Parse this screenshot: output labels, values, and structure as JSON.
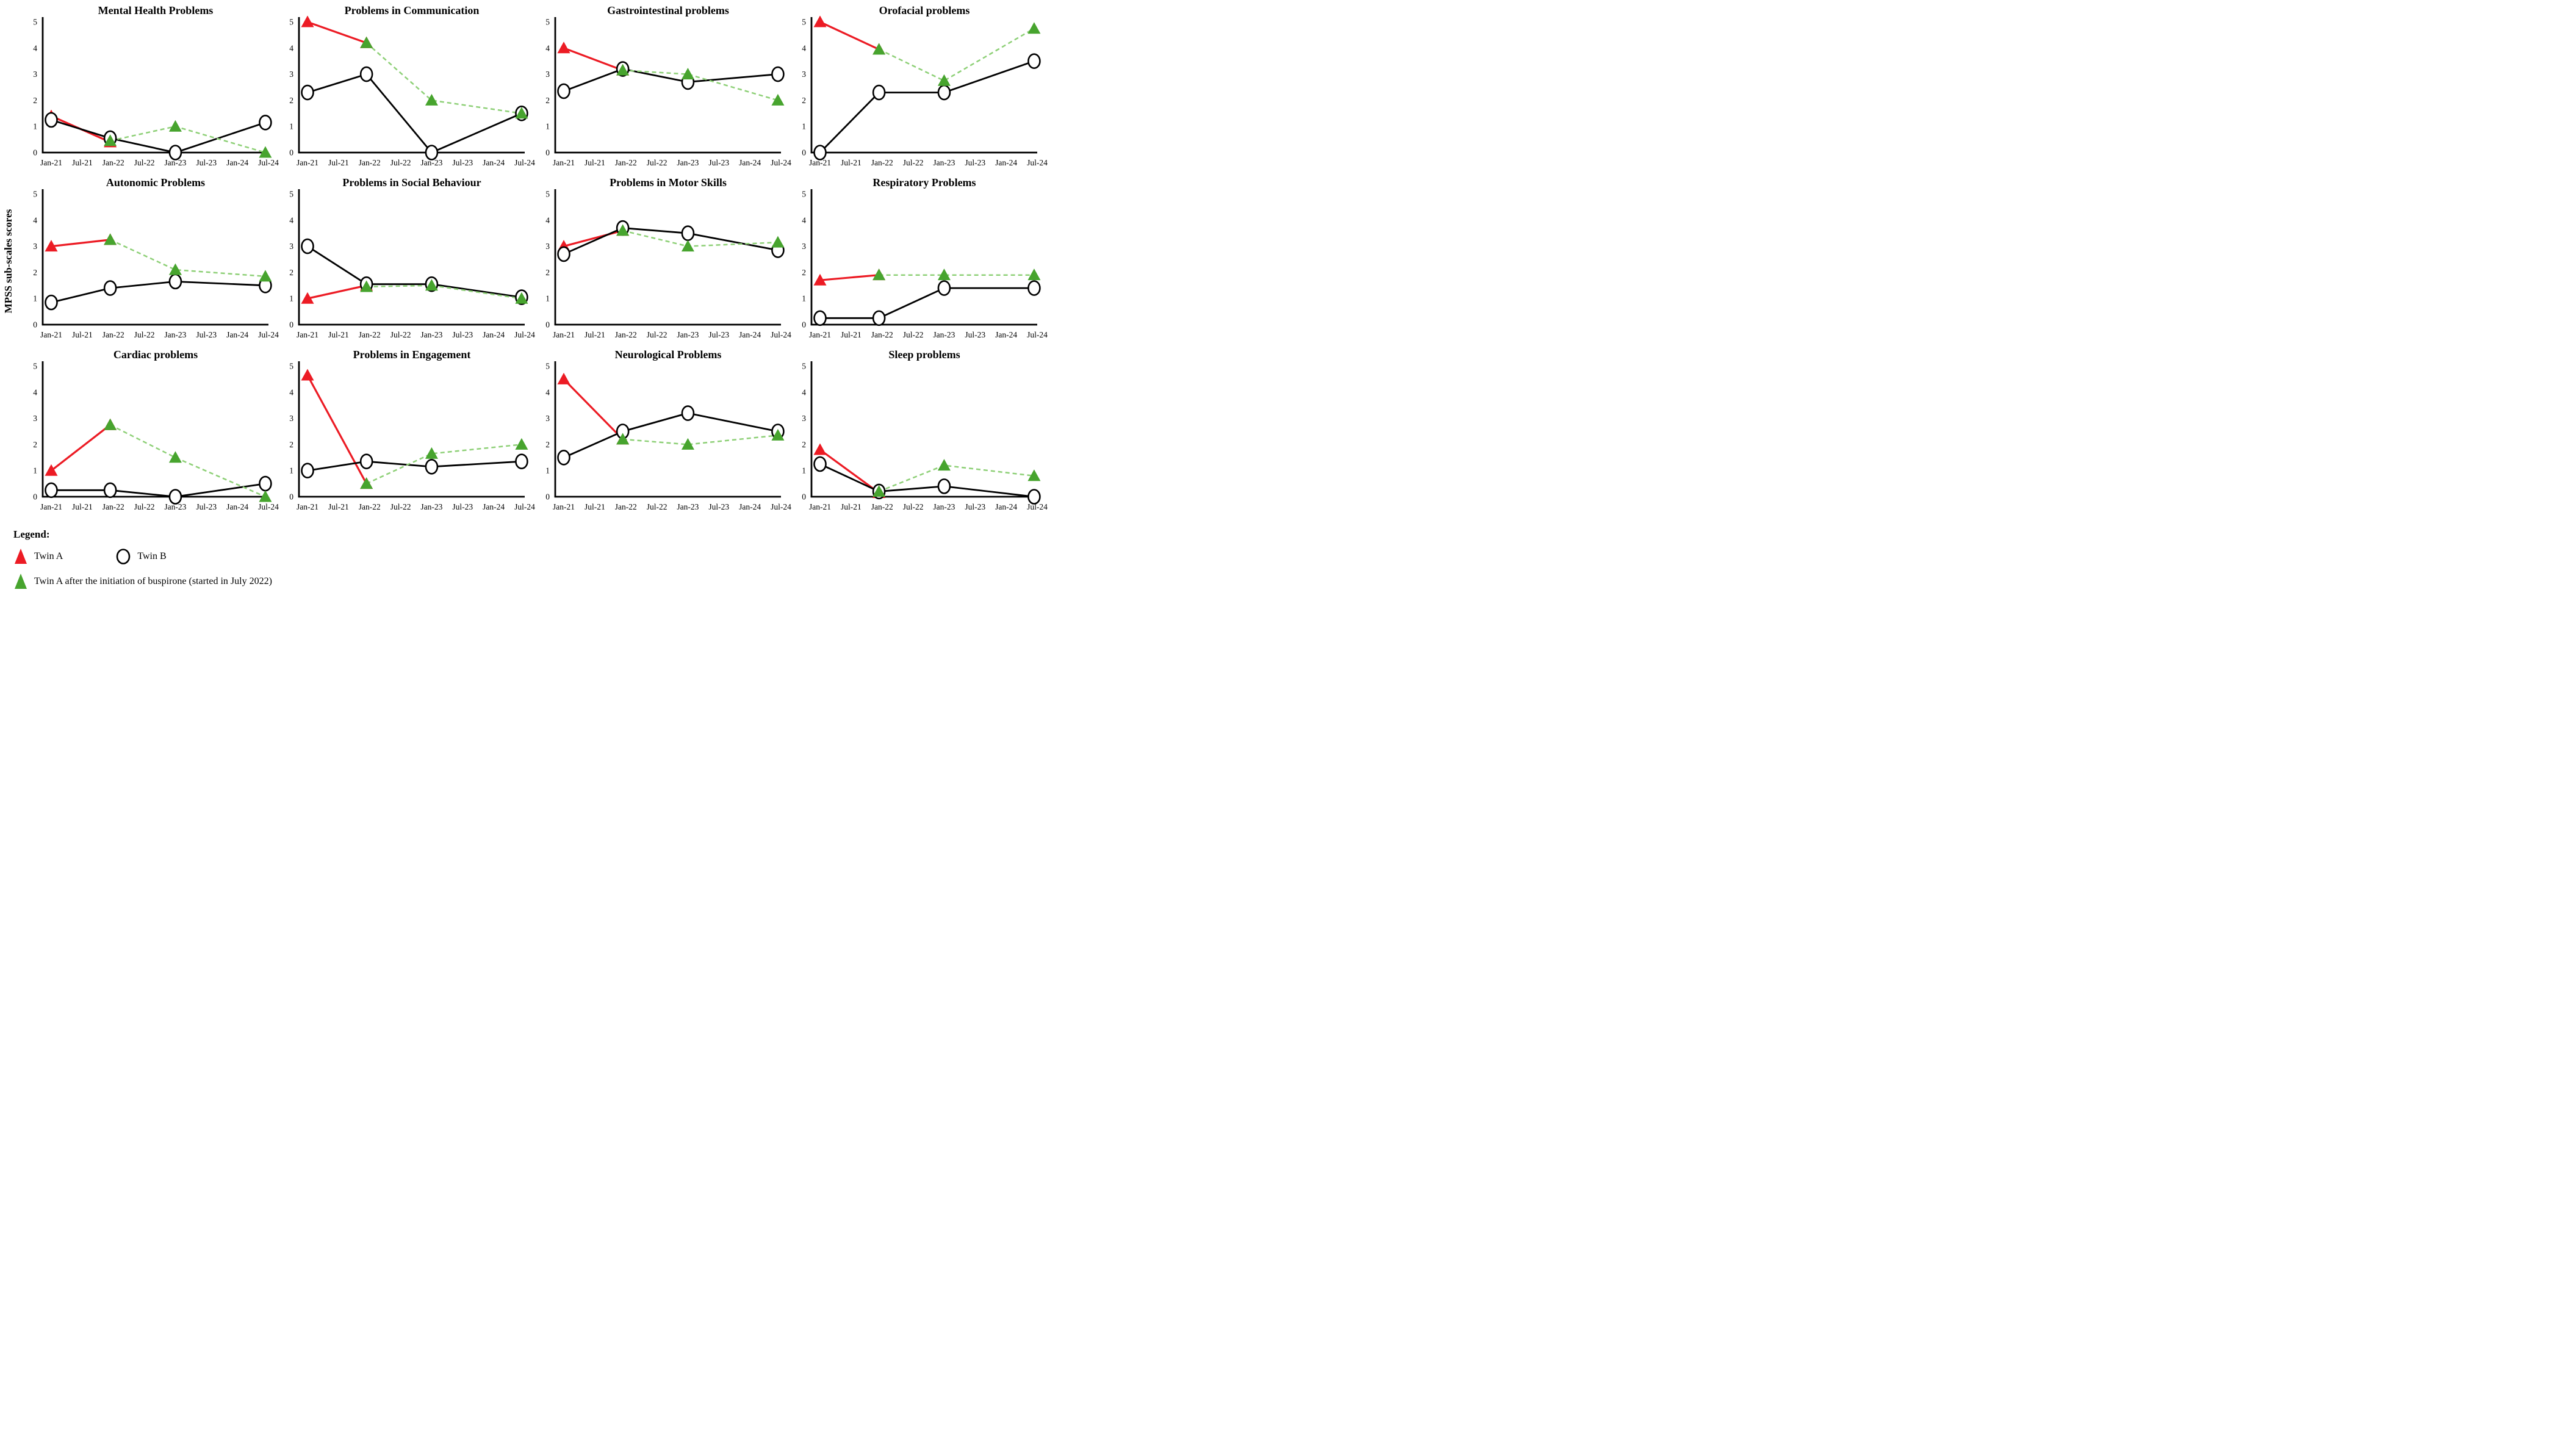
{
  "figure": {
    "ylabel": "MPSS sub-scales scores",
    "x_tick_labels": [
      "Jan-21",
      "Jul-21",
      "Jan-22",
      "Jul-22",
      "Jan-23",
      "Jul-23",
      "Jan-24",
      "Jul-24"
    ],
    "y_ticks": [
      0,
      1,
      2,
      3,
      4,
      5
    ],
    "ylim": [
      0,
      5
    ]
  },
  "colors": {
    "twin_a_line": "#ec1b24",
    "twin_a_marker": "#ec1b24",
    "twin_b_line": "#000000",
    "twin_b_fill": "#ffffff",
    "buspirone_line": "#8ed077",
    "buspirone_marker": "#47a42e"
  },
  "legend": {
    "heading": "Legend:",
    "items": [
      {
        "label": "Twin A",
        "marker": "red-triangle"
      },
      {
        "label": "Twin B",
        "marker": "open-circle"
      },
      {
        "label": "Twin A after the initiation  of buspirone (started in July 2022)",
        "marker": "green-triangle"
      }
    ]
  },
  "chart_data": [
    {
      "title": "Mental Health Problems",
      "type": "line",
      "x_unit": "tick-index (0 = Jan-21 ... 7 = Jul-24)",
      "ylim": [
        0,
        5
      ],
      "series": [
        {
          "name": "Twin A",
          "marker": "red-triangle",
          "x": [
            0,
            1.9
          ],
          "y": [
            1.4,
            0.4
          ]
        },
        {
          "name": "Twin B",
          "marker": "open-circle",
          "x": [
            0,
            1.9,
            4,
            6.9
          ],
          "y": [
            1.25,
            0.55,
            0,
            1.15
          ]
        },
        {
          "name": "Twin A after the initiation of buspirone",
          "marker": "green-triangle",
          "x": [
            1.9,
            4,
            6.9
          ],
          "y": [
            0.45,
            1.0,
            0.0
          ]
        }
      ]
    },
    {
      "title": "Problems in Communication",
      "type": "line",
      "x_unit": "tick-index (0 = Jan-21 ... 7 = Jul-24)",
      "ylim": [
        0,
        5
      ],
      "series": [
        {
          "name": "Twin A",
          "marker": "red-triangle",
          "x": [
            0,
            1.9
          ],
          "y": [
            5.0,
            4.2
          ]
        },
        {
          "name": "Twin B",
          "marker": "open-circle",
          "x": [
            0,
            1.9,
            4,
            6.9
          ],
          "y": [
            2.3,
            3.0,
            0,
            1.5
          ]
        },
        {
          "name": "Twin A after the initiation of buspirone",
          "marker": "green-triangle",
          "x": [
            1.9,
            4,
            6.9
          ],
          "y": [
            4.2,
            2.0,
            1.5
          ]
        }
      ]
    },
    {
      "title": "Gastrointestinal problems",
      "type": "line",
      "x_unit": "tick-index (0 = Jan-21 ... 7 = Jul-24)",
      "ylim": [
        0,
        5
      ],
      "series": [
        {
          "name": "Twin A",
          "marker": "red-triangle",
          "x": [
            0,
            1.9
          ],
          "y": [
            4.0,
            3.15
          ]
        },
        {
          "name": "Twin B",
          "marker": "open-circle",
          "x": [
            0,
            1.9,
            4,
            6.9
          ],
          "y": [
            2.35,
            3.2,
            2.7,
            3.0
          ]
        },
        {
          "name": "Twin A after the initiation of buspirone",
          "marker": "green-triangle",
          "x": [
            1.9,
            4,
            6.9
          ],
          "y": [
            3.15,
            3.0,
            2.0
          ]
        }
      ]
    },
    {
      "title": "Orofacial problems",
      "type": "line",
      "x_unit": "tick-index (0 = Jan-21 ... 7 = Jul-24)",
      "ylim": [
        0,
        5
      ],
      "series": [
        {
          "name": "Twin A",
          "marker": "red-triangle",
          "x": [
            0,
            1.9
          ],
          "y": [
            5.0,
            3.95
          ]
        },
        {
          "name": "Twin B",
          "marker": "open-circle",
          "x": [
            0,
            1.9,
            4,
            6.9
          ],
          "y": [
            0,
            2.3,
            2.3,
            3.5
          ]
        },
        {
          "name": "Twin A after the initiation of buspirone",
          "marker": "green-triangle",
          "x": [
            1.9,
            4,
            6.9
          ],
          "y": [
            3.95,
            2.75,
            4.75
          ]
        }
      ]
    },
    {
      "title": "Autonomic Problems",
      "type": "line",
      "x_unit": "tick-index (0 = Jan-21 ... 7 = Jul-24)",
      "ylim": [
        0,
        5
      ],
      "series": [
        {
          "name": "Twin A",
          "marker": "red-triangle",
          "x": [
            0,
            1.9
          ],
          "y": [
            3.0,
            3.25
          ]
        },
        {
          "name": "Twin B",
          "marker": "open-circle",
          "x": [
            0,
            1.9,
            4,
            6.9
          ],
          "y": [
            0.85,
            1.4,
            1.65,
            1.5
          ]
        },
        {
          "name": "Twin A after the initiation of buspirone",
          "marker": "green-triangle",
          "x": [
            1.9,
            4,
            6.9
          ],
          "y": [
            3.25,
            2.1,
            1.85
          ]
        }
      ]
    },
    {
      "title": "Problems in Social Behaviour",
      "type": "line",
      "x_unit": "tick-index (0 = Jan-21 ... 7 = Jul-24)",
      "ylim": [
        0,
        5
      ],
      "series": [
        {
          "name": "Twin A",
          "marker": "red-triangle",
          "x": [
            0,
            1.9
          ],
          "y": [
            1.0,
            1.5
          ]
        },
        {
          "name": "Twin B",
          "marker": "open-circle",
          "x": [
            0,
            1.9,
            4,
            6.9
          ],
          "y": [
            3.0,
            1.55,
            1.55,
            1.05
          ]
        },
        {
          "name": "Twin A after the initiation of buspirone",
          "marker": "green-triangle",
          "x": [
            1.9,
            4,
            6.9
          ],
          "y": [
            1.45,
            1.5,
            1.0
          ]
        }
      ]
    },
    {
      "title": "Problems in Motor Skills",
      "type": "line",
      "x_unit": "tick-index (0 = Jan-21 ... 7 = Jul-24)",
      "ylim": [
        0,
        5
      ],
      "series": [
        {
          "name": "Twin A",
          "marker": "red-triangle",
          "x": [
            0,
            1.9
          ],
          "y": [
            3.0,
            3.6
          ]
        },
        {
          "name": "Twin B",
          "marker": "open-circle",
          "x": [
            0,
            1.9,
            4,
            6.9
          ],
          "y": [
            2.7,
            3.7,
            3.5,
            2.85
          ]
        },
        {
          "name": "Twin A after the initiation of buspirone",
          "marker": "green-triangle",
          "x": [
            1.9,
            4,
            6.9
          ],
          "y": [
            3.6,
            3.0,
            3.15
          ]
        }
      ]
    },
    {
      "title": "Respiratory Problems",
      "type": "line",
      "x_unit": "tick-index (0 = Jan-21 ... 7 = Jul-24)",
      "ylim": [
        0,
        5
      ],
      "series": [
        {
          "name": "Twin A",
          "marker": "red-triangle",
          "x": [
            0,
            1.9
          ],
          "y": [
            1.7,
            1.9
          ]
        },
        {
          "name": "Twin B",
          "marker": "open-circle",
          "x": [
            0,
            1.9,
            4,
            6.9
          ],
          "y": [
            0.25,
            0.25,
            1.4,
            1.4
          ]
        },
        {
          "name": "Twin A after the initiation of buspirone",
          "marker": "green-triangle",
          "x": [
            1.9,
            4,
            6.9
          ],
          "y": [
            1.9,
            1.9,
            1.9
          ]
        }
      ]
    },
    {
      "title": "Cardiac problems",
      "type": "line",
      "x_unit": "tick-index (0 = Jan-21 ... 7 = Jul-24)",
      "ylim": [
        0,
        5
      ],
      "series": [
        {
          "name": "Twin A",
          "marker": "red-triangle",
          "x": [
            0,
            1.9
          ],
          "y": [
            1.0,
            2.75
          ]
        },
        {
          "name": "Twin B",
          "marker": "open-circle",
          "x": [
            0,
            1.9,
            4,
            6.9
          ],
          "y": [
            0.25,
            0.25,
            0,
            0.5
          ]
        },
        {
          "name": "Twin A after the initiation of buspirone",
          "marker": "green-triangle",
          "x": [
            1.9,
            4,
            6.9
          ],
          "y": [
            2.75,
            1.5,
            0.0
          ]
        }
      ]
    },
    {
      "title": "Problems in Engagement",
      "type": "line",
      "x_unit": "tick-index (0 = Jan-21 ... 7 = Jul-24)",
      "ylim": [
        0,
        5
      ],
      "series": [
        {
          "name": "Twin A",
          "marker": "red-triangle",
          "x": [
            0,
            1.9
          ],
          "y": [
            4.65,
            0.5
          ]
        },
        {
          "name": "Twin B",
          "marker": "open-circle",
          "x": [
            0,
            1.9,
            4,
            6.9
          ],
          "y": [
            1.0,
            1.35,
            1.15,
            1.35
          ]
        },
        {
          "name": "Twin A after the initiation of buspirone",
          "marker": "green-triangle",
          "x": [
            1.9,
            4,
            6.9
          ],
          "y": [
            0.5,
            1.65,
            2.0
          ]
        }
      ]
    },
    {
      "title": "Neurological Problems",
      "type": "line",
      "x_unit": "tick-index (0 = Jan-21 ... 7 = Jul-24)",
      "ylim": [
        0,
        5
      ],
      "series": [
        {
          "name": "Twin A",
          "marker": "red-triangle",
          "x": [
            0,
            1.9
          ],
          "y": [
            4.5,
            2.2
          ]
        },
        {
          "name": "Twin B",
          "marker": "open-circle",
          "x": [
            0,
            1.9,
            4,
            6.9
          ],
          "y": [
            1.5,
            2.5,
            3.2,
            2.5
          ]
        },
        {
          "name": "Twin A after the initiation of buspirone",
          "marker": "green-triangle",
          "x": [
            1.9,
            4,
            6.9
          ],
          "y": [
            2.2,
            2.0,
            2.35
          ]
        }
      ]
    },
    {
      "title": "Sleep problems",
      "type": "line",
      "x_unit": "tick-index (0 = Jan-21 ... 7 = Jul-24)",
      "ylim": [
        0,
        5
      ],
      "series": [
        {
          "name": "Twin A",
          "marker": "red-triangle",
          "x": [
            0,
            1.9
          ],
          "y": [
            1.8,
            0.15
          ]
        },
        {
          "name": "Twin B",
          "marker": "open-circle",
          "x": [
            0,
            1.9,
            4,
            6.9
          ],
          "y": [
            1.25,
            0.2,
            0.4,
            0
          ]
        },
        {
          "name": "Twin A after the initiation of buspirone",
          "marker": "green-triangle",
          "x": [
            1.9,
            4,
            6.9
          ],
          "y": [
            0.2,
            1.2,
            0.8
          ]
        }
      ]
    }
  ]
}
